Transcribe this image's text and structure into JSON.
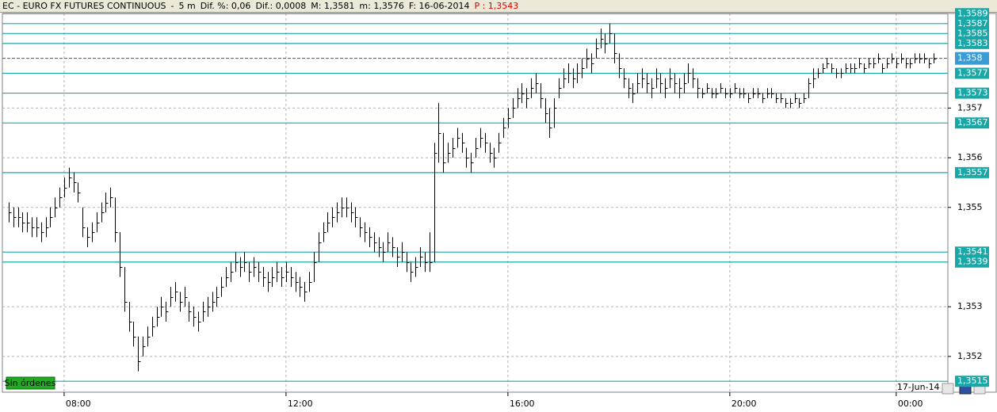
{
  "chart_data": {
    "type": "ohlc",
    "header": [
      "EC - EURO FX FUTURES CONTINUOUS",
      "-",
      "5 m",
      "Dif. %: 0,06",
      "Dif.: 0,0008",
      "M: 1,3581",
      "m: 1,3576",
      "F: 16-06-2014"
    ],
    "price_label": "P : 1,3543",
    "orders_label": "Sin órdenes",
    "session_label": "17-Jun-14",
    "bar_color": "#000000",
    "level_color": "#19a7a7",
    "ylim": [
      1.35128,
      1.35892
    ],
    "xlim": [
      -0.5,
      203
    ],
    "xticks": [
      {
        "value": 12,
        "label": "08:00"
      },
      {
        "value": 60,
        "label": "12:00"
      },
      {
        "value": 108,
        "label": "16:00"
      },
      {
        "value": 156,
        "label": "20:00"
      },
      {
        "value": 192,
        "label": "00:00"
      }
    ],
    "yticks": [
      {
        "value": 1.357,
        "label": "1,357"
      },
      {
        "value": 1.356,
        "label": "1,356"
      },
      {
        "value": 1.355,
        "label": "1,355"
      },
      {
        "value": 1.353,
        "label": "1,353"
      },
      {
        "value": 1.352,
        "label": "1,352"
      }
    ],
    "levels": [
      {
        "value": 1.3589,
        "label": "1,3589"
      },
      {
        "value": 1.3587,
        "label": "1,3587"
      },
      {
        "value": 1.3585,
        "label": "1,3585"
      },
      {
        "value": 1.3583,
        "label": "1,3583"
      },
      {
        "value": 1.3577,
        "label": "1,3577"
      },
      {
        "value": 1.3573,
        "label": "1,3573"
      },
      {
        "value": 1.3567,
        "label": "1,3567"
      },
      {
        "value": 1.3557,
        "label": "1,3557"
      },
      {
        "value": 1.3541,
        "label": "1,3541"
      },
      {
        "value": 1.3539,
        "label": "1,3539"
      },
      {
        "value": 1.3515,
        "label": "1,3515"
      }
    ],
    "last_price": {
      "value": 1.358,
      "label": "1,358"
    },
    "last_price_color": "#3a9bd5",
    "high": [
      1.3551,
      1.355,
      1.355,
      1.3549,
      1.3549,
      1.3548,
      1.3548,
      1.3547,
      1.3548,
      1.355,
      1.3552,
      1.3554,
      1.3556,
      1.3558,
      1.3557,
      1.3555,
      1.355,
      1.3546,
      1.3547,
      1.3549,
      1.3551,
      1.3553,
      1.3554,
      1.3552,
      1.3545,
      1.3538,
      1.3531,
      1.3527,
      1.3524,
      1.3524,
      1.3526,
      1.3528,
      1.353,
      1.3532,
      1.3531,
      1.3534,
      1.3535,
      1.3533,
      1.3534,
      1.3531,
      1.353,
      1.3529,
      1.3531,
      1.3532,
      1.3533,
      1.3534,
      1.3536,
      1.3538,
      1.3539,
      1.3541,
      1.354,
      1.3541,
      1.3539,
      1.354,
      1.3539,
      1.3538,
      1.3537,
      1.3538,
      1.3539,
      1.3538,
      1.3539,
      1.3538,
      1.3537,
      1.3536,
      1.3535,
      1.3537,
      1.3541,
      1.3545,
      1.3547,
      1.3549,
      1.355,
      1.3551,
      1.3552,
      1.3552,
      1.3551,
      1.355,
      1.3548,
      1.3547,
      1.3546,
      1.3545,
      1.3544,
      1.3543,
      1.3545,
      1.3544,
      1.3542,
      1.3543,
      1.3541,
      1.3539,
      1.354,
      1.3542,
      1.3541,
      1.3545,
      1.3563,
      1.3571,
      1.3565,
      1.3563,
      1.3564,
      1.3566,
      1.3565,
      1.3562,
      1.3561,
      1.3564,
      1.3566,
      1.3565,
      1.3563,
      1.3562,
      1.3565,
      1.3568,
      1.357,
      1.3572,
      1.3574,
      1.3575,
      1.3574,
      1.3576,
      1.3577,
      1.3575,
      1.3572,
      1.357,
      1.3572,
      1.3576,
      1.3578,
      1.3579,
      1.3578,
      1.3579,
      1.358,
      1.3582,
      1.3581,
      1.3584,
      1.3586,
      1.3585,
      1.3587,
      1.3585,
      1.3581,
      1.3578,
      1.3576,
      1.3575,
      1.3577,
      1.3578,
      1.3577,
      1.3576,
      1.3578,
      1.3577,
      1.3576,
      1.3578,
      1.3577,
      1.3576,
      1.3577,
      1.3579,
      1.3578,
      1.3576,
      1.3574,
      1.3575,
      1.3574,
      1.3574,
      1.3575,
      1.3574,
      1.3574,
      1.3575,
      1.3574,
      1.3574,
      1.3573,
      1.3574,
      1.3574,
      1.3573,
      1.3574,
      1.3574,
      1.3573,
      1.3573,
      1.3572,
      1.3572,
      1.3573,
      1.3572,
      1.3573,
      1.3576,
      1.3578,
      1.3578,
      1.3579,
      1.358,
      1.3579,
      1.3578,
      1.3578,
      1.3579,
      1.3579,
      1.3579,
      1.358,
      1.3579,
      1.358,
      1.358,
      1.3581,
      1.3579,
      1.358,
      1.3581,
      1.358,
      1.3581,
      1.358,
      1.358,
      1.3581,
      1.3581,
      1.3581,
      1.358,
      1.3581
    ],
    "low": [
      1.3547,
      1.3546,
      1.3546,
      1.3545,
      1.3545,
      1.3544,
      1.3544,
      1.3543,
      1.3544,
      1.3546,
      1.3548,
      1.355,
      1.3552,
      1.3554,
      1.3553,
      1.3551,
      1.3544,
      1.3542,
      1.3543,
      1.3545,
      1.3547,
      1.3549,
      1.355,
      1.3543,
      1.3536,
      1.3529,
      1.3525,
      1.3522,
      1.3517,
      1.352,
      1.3522,
      1.3524,
      1.3526,
      1.3528,
      1.3527,
      1.353,
      1.3531,
      1.3529,
      1.353,
      1.3527,
      1.3526,
      1.3525,
      1.3527,
      1.3528,
      1.3529,
      1.353,
      1.3532,
      1.3534,
      1.3535,
      1.3537,
      1.3536,
      1.3537,
      1.3535,
      1.3536,
      1.3535,
      1.3534,
      1.3533,
      1.3534,
      1.3535,
      1.3534,
      1.3535,
      1.3534,
      1.3533,
      1.3532,
      1.3531,
      1.3533,
      1.3535,
      1.3539,
      1.3543,
      1.3545,
      1.3546,
      1.3547,
      1.3548,
      1.3548,
      1.3547,
      1.3546,
      1.3544,
      1.3543,
      1.3542,
      1.3541,
      1.354,
      1.3539,
      1.3541,
      1.354,
      1.3538,
      1.3539,
      1.3537,
      1.3535,
      1.3536,
      1.3538,
      1.3537,
      1.3537,
      1.3539,
      1.3559,
      1.3557,
      1.3559,
      1.356,
      1.3562,
      1.3561,
      1.3558,
      1.3557,
      1.356,
      1.3562,
      1.3561,
      1.3559,
      1.3558,
      1.3561,
      1.3564,
      1.3566,
      1.3568,
      1.357,
      1.3571,
      1.357,
      1.3572,
      1.3573,
      1.357,
      1.3567,
      1.3564,
      1.3566,
      1.3572,
      1.3574,
      1.3575,
      1.3574,
      1.3575,
      1.3576,
      1.3578,
      1.3577,
      1.358,
      1.3582,
      1.3581,
      1.3583,
      1.3579,
      1.3576,
      1.3574,
      1.3572,
      1.3571,
      1.3573,
      1.3574,
      1.3573,
      1.3572,
      1.3574,
      1.3573,
      1.3572,
      1.3574,
      1.3573,
      1.3572,
      1.3573,
      1.3575,
      1.3574,
      1.3572,
      1.3572,
      1.3573,
      1.3572,
      1.3572,
      1.3573,
      1.3572,
      1.3572,
      1.3573,
      1.3572,
      1.3572,
      1.3571,
      1.3572,
      1.3572,
      1.3571,
      1.3572,
      1.3572,
      1.3571,
      1.3571,
      1.357,
      1.357,
      1.3571,
      1.357,
      1.3571,
      1.3572,
      1.3574,
      1.3576,
      1.3577,
      1.3578,
      1.3577,
      1.3576,
      1.3576,
      1.3577,
      1.3577,
      1.3577,
      1.3578,
      1.3577,
      1.3578,
      1.3578,
      1.3579,
      1.3577,
      1.3578,
      1.3579,
      1.3578,
      1.3579,
      1.3578,
      1.3578,
      1.3579,
      1.3579,
      1.3579,
      1.3578,
      1.3579
    ],
    "close": [
      1.3549,
      1.3548,
      1.3548,
      1.3547,
      1.3547,
      1.3546,
      1.3546,
      1.3545,
      1.3546,
      1.3548,
      1.355,
      1.3552,
      1.3554,
      1.3556,
      1.3555,
      1.3553,
      1.3546,
      1.3544,
      1.3545,
      1.3547,
      1.3549,
      1.3551,
      1.3552,
      1.3545,
      1.3538,
      1.3531,
      1.3527,
      1.3524,
      1.3519,
      1.3522,
      1.3524,
      1.3526,
      1.3528,
      1.353,
      1.3529,
      1.3532,
      1.3533,
      1.3531,
      1.3532,
      1.3529,
      1.3528,
      1.3527,
      1.3529,
      1.353,
      1.3531,
      1.3532,
      1.3534,
      1.3536,
      1.3537,
      1.3539,
      1.3538,
      1.3539,
      1.3537,
      1.3538,
      1.3537,
      1.3536,
      1.3535,
      1.3536,
      1.3537,
      1.3536,
      1.3537,
      1.3536,
      1.3535,
      1.3534,
      1.3533,
      1.3535,
      1.3539,
      1.3543,
      1.3545,
      1.3547,
      1.3548,
      1.3549,
      1.355,
      1.355,
      1.3549,
      1.3548,
      1.3546,
      1.3545,
      1.3544,
      1.3543,
      1.3542,
      1.3541,
      1.3543,
      1.3542,
      1.354,
      1.3541,
      1.3539,
      1.3537,
      1.3538,
      1.354,
      1.3539,
      1.3539,
      1.3561,
      1.3565,
      1.3559,
      1.3561,
      1.3562,
      1.3564,
      1.3563,
      1.356,
      1.3559,
      1.3562,
      1.3564,
      1.3563,
      1.3561,
      1.356,
      1.3563,
      1.3566,
      1.3568,
      1.357,
      1.3572,
      1.3573,
      1.3572,
      1.3574,
      1.3575,
      1.3572,
      1.3569,
      1.3566,
      1.357,
      1.3574,
      1.3576,
      1.3577,
      1.3576,
      1.3577,
      1.3578,
      1.358,
      1.3579,
      1.3582,
      1.3584,
      1.3583,
      1.3585,
      1.3581,
      1.3578,
      1.3576,
      1.3574,
      1.3573,
      1.3575,
      1.3576,
      1.3575,
      1.3574,
      1.3576,
      1.3575,
      1.3574,
      1.3576,
      1.3575,
      1.3574,
      1.3575,
      1.3577,
      1.3576,
      1.3574,
      1.3573,
      1.3574,
      1.3573,
      1.3573,
      1.3574,
      1.3573,
      1.3573,
      1.3574,
      1.3573,
      1.3573,
      1.3572,
      1.3573,
      1.3573,
      1.3572,
      1.3573,
      1.3573,
      1.3572,
      1.3572,
      1.3571,
      1.3571,
      1.3572,
      1.3571,
      1.3572,
      1.3575,
      1.3576,
      1.3577,
      1.3578,
      1.3579,
      1.3578,
      1.3577,
      1.3577,
      1.3578,
      1.3578,
      1.3578,
      1.3579,
      1.3578,
      1.3579,
      1.3579,
      1.358,
      1.3578,
      1.3579,
      1.358,
      1.3579,
      1.358,
      1.3579,
      1.3579,
      1.358,
      1.358,
      1.358,
      1.3579,
      1.358
    ]
  }
}
